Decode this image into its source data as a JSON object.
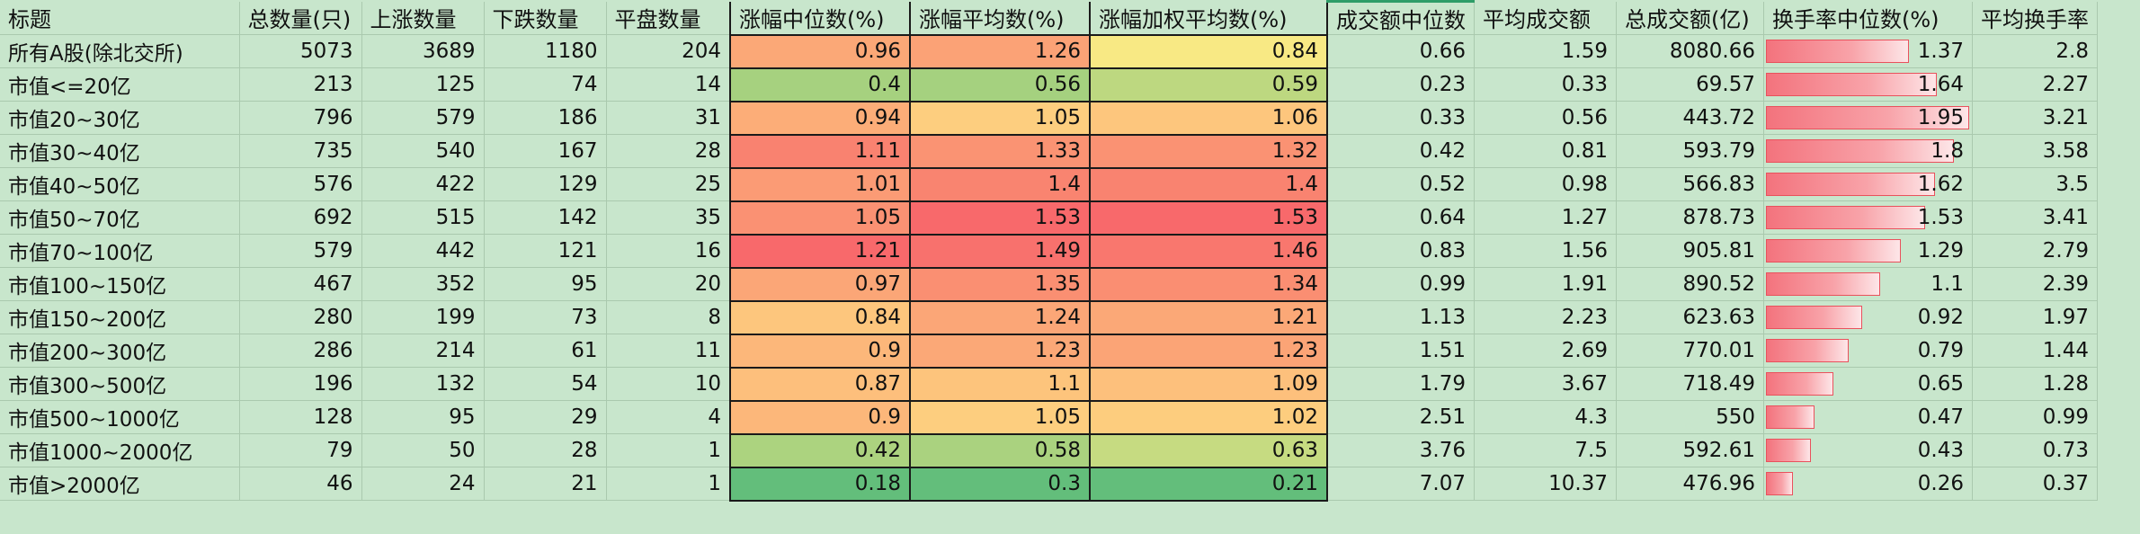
{
  "sheet": {
    "headers": [
      "标题",
      "总数量(只)",
      "上涨数量",
      "下跌数量",
      "平盘数量",
      "涨幅中位数(%)",
      "涨幅平均数(%)",
      "涨幅加权平均数(%)",
      "成交额中位数",
      "平均成交额",
      "总成交额(亿)",
      "换手率中位数(%)",
      "平均换手率"
    ],
    "rows": [
      {
        "title": "所有A股(除北交所)",
        "total": "5073",
        "up": "3689",
        "down": "1180",
        "flat": "204",
        "chg_median": "0.96",
        "chg_mean": "1.26",
        "chg_wmean": "0.84",
        "amt_median": "0.66",
        "amt_mean": "1.59",
        "amt_total": "8080.66",
        "turn_median": "1.37",
        "turn_mean": "2.8"
      },
      {
        "title": "市值<=20亿",
        "total": "213",
        "up": "125",
        "down": "74",
        "flat": "14",
        "chg_median": "0.4",
        "chg_mean": "0.56",
        "chg_wmean": "0.59",
        "amt_median": "0.23",
        "amt_mean": "0.33",
        "amt_total": "69.57",
        "turn_median": "1.64",
        "turn_mean": "2.27"
      },
      {
        "title": "市值20~30亿",
        "total": "796",
        "up": "579",
        "down": "186",
        "flat": "31",
        "chg_median": "0.94",
        "chg_mean": "1.05",
        "chg_wmean": "1.06",
        "amt_median": "0.33",
        "amt_mean": "0.56",
        "amt_total": "443.72",
        "turn_median": "1.95",
        "turn_mean": "3.21"
      },
      {
        "title": "市值30~40亿",
        "total": "735",
        "up": "540",
        "down": "167",
        "flat": "28",
        "chg_median": "1.11",
        "chg_mean": "1.33",
        "chg_wmean": "1.32",
        "amt_median": "0.42",
        "amt_mean": "0.81",
        "amt_total": "593.79",
        "turn_median": "1.8",
        "turn_mean": "3.58"
      },
      {
        "title": "市值40~50亿",
        "total": "576",
        "up": "422",
        "down": "129",
        "flat": "25",
        "chg_median": "1.01",
        "chg_mean": "1.4",
        "chg_wmean": "1.4",
        "amt_median": "0.52",
        "amt_mean": "0.98",
        "amt_total": "566.83",
        "turn_median": "1.62",
        "turn_mean": "3.5"
      },
      {
        "title": "市值50~70亿",
        "total": "692",
        "up": "515",
        "down": "142",
        "flat": "35",
        "chg_median": "1.05",
        "chg_mean": "1.53",
        "chg_wmean": "1.53",
        "amt_median": "0.64",
        "amt_mean": "1.27",
        "amt_total": "878.73",
        "turn_median": "1.53",
        "turn_mean": "3.41"
      },
      {
        "title": "市值70~100亿",
        "total": "579",
        "up": "442",
        "down": "121",
        "flat": "16",
        "chg_median": "1.21",
        "chg_mean": "1.49",
        "chg_wmean": "1.46",
        "amt_median": "0.83",
        "amt_mean": "1.56",
        "amt_total": "905.81",
        "turn_median": "1.29",
        "turn_mean": "2.79"
      },
      {
        "title": "市值100~150亿",
        "total": "467",
        "up": "352",
        "down": "95",
        "flat": "20",
        "chg_median": "0.97",
        "chg_mean": "1.35",
        "chg_wmean": "1.34",
        "amt_median": "0.99",
        "amt_mean": "1.91",
        "amt_total": "890.52",
        "turn_median": "1.1",
        "turn_mean": "2.39"
      },
      {
        "title": "市值150~200亿",
        "total": "280",
        "up": "199",
        "down": "73",
        "flat": "8",
        "chg_median": "0.84",
        "chg_mean": "1.24",
        "chg_wmean": "1.21",
        "amt_median": "1.13",
        "amt_mean": "2.23",
        "amt_total": "623.63",
        "turn_median": "0.92",
        "turn_mean": "1.97"
      },
      {
        "title": "市值200~300亿",
        "total": "286",
        "up": "214",
        "down": "61",
        "flat": "11",
        "chg_median": "0.9",
        "chg_mean": "1.23",
        "chg_wmean": "1.23",
        "amt_median": "1.51",
        "amt_mean": "2.69",
        "amt_total": "770.01",
        "turn_median": "0.79",
        "turn_mean": "1.44"
      },
      {
        "title": "市值300~500亿",
        "total": "196",
        "up": "132",
        "down": "54",
        "flat": "10",
        "chg_median": "0.87",
        "chg_mean": "1.1",
        "chg_wmean": "1.09",
        "amt_median": "1.79",
        "amt_mean": "3.67",
        "amt_total": "718.49",
        "turn_median": "0.65",
        "turn_mean": "1.28"
      },
      {
        "title": "市值500~1000亿",
        "total": "128",
        "up": "95",
        "down": "29",
        "flat": "4",
        "chg_median": "0.9",
        "chg_mean": "1.05",
        "chg_wmean": "1.02",
        "amt_median": "2.51",
        "amt_mean": "4.3",
        "amt_total": "550",
        "turn_median": "0.47",
        "turn_mean": "0.99"
      },
      {
        "title": "市值1000~2000亿",
        "total": "79",
        "up": "50",
        "down": "28",
        "flat": "1",
        "chg_median": "0.42",
        "chg_mean": "0.58",
        "chg_wmean": "0.63",
        "amt_median": "3.76",
        "amt_mean": "7.5",
        "amt_total": "592.61",
        "turn_median": "0.43",
        "turn_mean": "0.73"
      },
      {
        "title": "市值>2000亿",
        "total": "46",
        "up": "24",
        "down": "21",
        "flat": "1",
        "chg_median": "0.18",
        "chg_mean": "0.3",
        "chg_wmean": "0.21",
        "amt_median": "7.07",
        "amt_mean": "10.37",
        "amt_total": "476.96",
        "turn_median": "0.26",
        "turn_mean": "0.37"
      }
    ]
  },
  "colors": {
    "background": "#c8e6cc",
    "heat_low": "#63be7b",
    "heat_mid": "#ffeb84",
    "heat_high": "#f8696b",
    "bar_fill": "#f3737d",
    "selected_column": "#2e9d68"
  }
}
